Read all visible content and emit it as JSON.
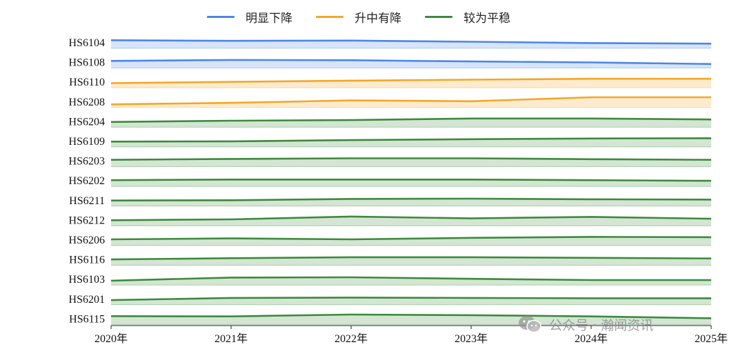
{
  "legend": [
    {
      "label": "明显下降",
      "color": "#4a86e8"
    },
    {
      "label": "升中有降",
      "color": "#f5a623"
    },
    {
      "label": "较为平稳",
      "color": "#3a8a3a"
    }
  ],
  "watermark": {
    "text": "公众号 · 瀚闻资讯",
    "icon": "wechat-icon"
  },
  "chart_data": {
    "type": "ridgeline-line-area",
    "x": [
      "2020年",
      "2021年",
      "2022年",
      "2023年",
      "2024年",
      "2025年"
    ],
    "grid": false,
    "legend_position": "top-center",
    "series": [
      {
        "name": "HS6104",
        "group": "明显下降",
        "values": [
          2.6,
          2.4,
          2.5,
          2.1,
          1.7,
          1.5
        ]
      },
      {
        "name": "HS6108",
        "group": "明显下降",
        "values": [
          2.3,
          2.6,
          2.5,
          2.1,
          1.8,
          1.3
        ]
      },
      {
        "name": "HS6110",
        "group": "升中有降",
        "values": [
          1.5,
          1.9,
          2.3,
          2.6,
          2.9,
          2.9
        ]
      },
      {
        "name": "HS6208",
        "group": "升中有降",
        "values": [
          1.0,
          1.5,
          2.3,
          2.0,
          3.3,
          3.3
        ]
      },
      {
        "name": "HS6204",
        "group": "较为平稳",
        "values": [
          1.7,
          2.1,
          2.3,
          2.8,
          2.8,
          2.5
        ]
      },
      {
        "name": "HS6109",
        "group": "较为平稳",
        "values": [
          1.7,
          1.8,
          2.2,
          2.5,
          2.7,
          2.8
        ]
      },
      {
        "name": "HS6203",
        "group": "较为平稳",
        "values": [
          2.2,
          2.5,
          2.7,
          2.7,
          2.4,
          2.2
        ]
      },
      {
        "name": "HS6202",
        "group": "较为平稳",
        "values": [
          2.0,
          2.2,
          2.2,
          2.2,
          2.0,
          1.8
        ]
      },
      {
        "name": "HS6211",
        "group": "较为平稳",
        "values": [
          1.8,
          1.9,
          2.3,
          2.4,
          2.2,
          2.1
        ]
      },
      {
        "name": "HS6212",
        "group": "较为平稳",
        "values": [
          1.8,
          2.1,
          3.0,
          2.4,
          2.9,
          2.3
        ]
      },
      {
        "name": "HS6206",
        "group": "较为平稳",
        "values": [
          2.0,
          2.3,
          2.0,
          2.5,
          2.8,
          2.7
        ]
      },
      {
        "name": "HS6116",
        "group": "较为平稳",
        "values": [
          1.9,
          2.3,
          2.6,
          2.6,
          2.4,
          2.2
        ]
      },
      {
        "name": "HS6103",
        "group": "较为平稳",
        "values": [
          1.4,
          2.4,
          2.5,
          2.0,
          1.6,
          1.6
        ]
      },
      {
        "name": "HS6201",
        "group": "较为平稳",
        "values": [
          1.5,
          2.2,
          2.3,
          2.2,
          2.1,
          2.1
        ]
      },
      {
        "name": "HS6115",
        "group": "较为平稳",
        "values": [
          2.7,
          2.6,
          3.2,
          3.0,
          2.6,
          2.0
        ]
      }
    ]
  }
}
